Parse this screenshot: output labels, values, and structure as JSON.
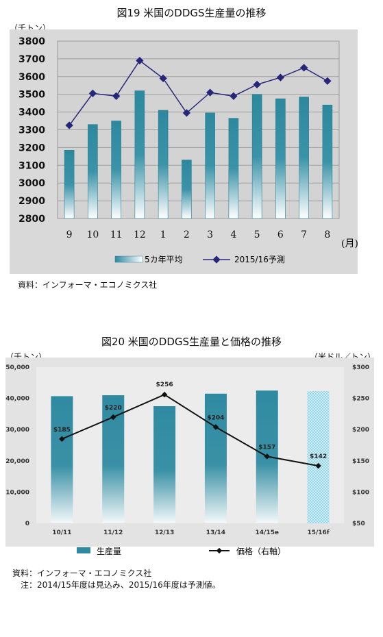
{
  "fig19": {
    "title": "図19 米国のDDGS生産量の推移",
    "unit_left": "（千トン）",
    "month_suffix": "(月)",
    "source": "資料：インフォーマ・エコノミクス社",
    "legend_bar": "5カ年平均",
    "legend_line": "2015/16予測"
  },
  "fig20": {
    "title": "図20 米国のDDGS生産量と価格の推移",
    "unit_left": "（千トン）",
    "unit_right": "（米ドル／トン）",
    "legend_bar": "生産量",
    "legend_line": "価格（右軸）",
    "source": "資料：インフォーマ・エコノミクス社",
    "note": "注：2014/15年度は見込み、2015/16年度は予測値。"
  },
  "colors": {
    "bar": "#2e8aa0",
    "line": "#27277a",
    "plot_bg": "#d6d6d6",
    "line2": "#111111"
  },
  "chart_data": [
    {
      "type": "bar",
      "title": "図19 米国のDDGS生産量の推移",
      "xlabel": "(月)",
      "ylabel": "（千トン）",
      "categories": [
        "9",
        "10",
        "11",
        "12",
        "1",
        "2",
        "3",
        "4",
        "5",
        "6",
        "7",
        "8"
      ],
      "series": [
        {
          "name": "5カ年平均",
          "type": "bar",
          "values": [
            3185,
            3330,
            3350,
            3520,
            3410,
            3130,
            3395,
            3365,
            3500,
            3475,
            3485,
            3440
          ]
        },
        {
          "name": "2015/16予測",
          "type": "line",
          "values": [
            3325,
            3505,
            3490,
            3690,
            3590,
            3395,
            3510,
            3490,
            3555,
            3595,
            3650,
            3575
          ]
        }
      ],
      "ylim": [
        2800,
        3800
      ],
      "yticks": [
        2800,
        2900,
        3000,
        3100,
        3200,
        3300,
        3400,
        3500,
        3600,
        3700,
        3800
      ],
      "grid": true,
      "legend": "bottom"
    },
    {
      "type": "bar",
      "title": "図20 米国のDDGS生産量と価格の推移",
      "categories": [
        "10/11",
        "11/12",
        "12/13",
        "13/14",
        "14/15e",
        "15/16f"
      ],
      "series": [
        {
          "name": "生産量",
          "type": "bar",
          "axis": "left",
          "values": [
            40700,
            41000,
            37500,
            41500,
            42500,
            42300
          ]
        },
        {
          "name": "価格（右軸）",
          "type": "line",
          "axis": "right",
          "values": [
            185,
            220,
            256,
            204,
            157,
            142
          ],
          "labels": [
            "$185",
            "$220",
            "$256",
            "$204",
            "$157",
            "$142"
          ]
        }
      ],
      "ylabel_left": "（千トン）",
      "ylabel_right": "（米ドル／トン）",
      "ylim_left": [
        0,
        50000
      ],
      "ylim_right": [
        50,
        300
      ],
      "yticks_left": [
        "0",
        "10,000",
        "20,000",
        "30,000",
        "40,000",
        "50,000"
      ],
      "yticks_right": [
        "$50",
        "$100",
        "$150",
        "$200",
        "$250",
        "$300"
      ],
      "forecast_category": "15/16f",
      "grid": false,
      "legend": "bottom"
    }
  ]
}
